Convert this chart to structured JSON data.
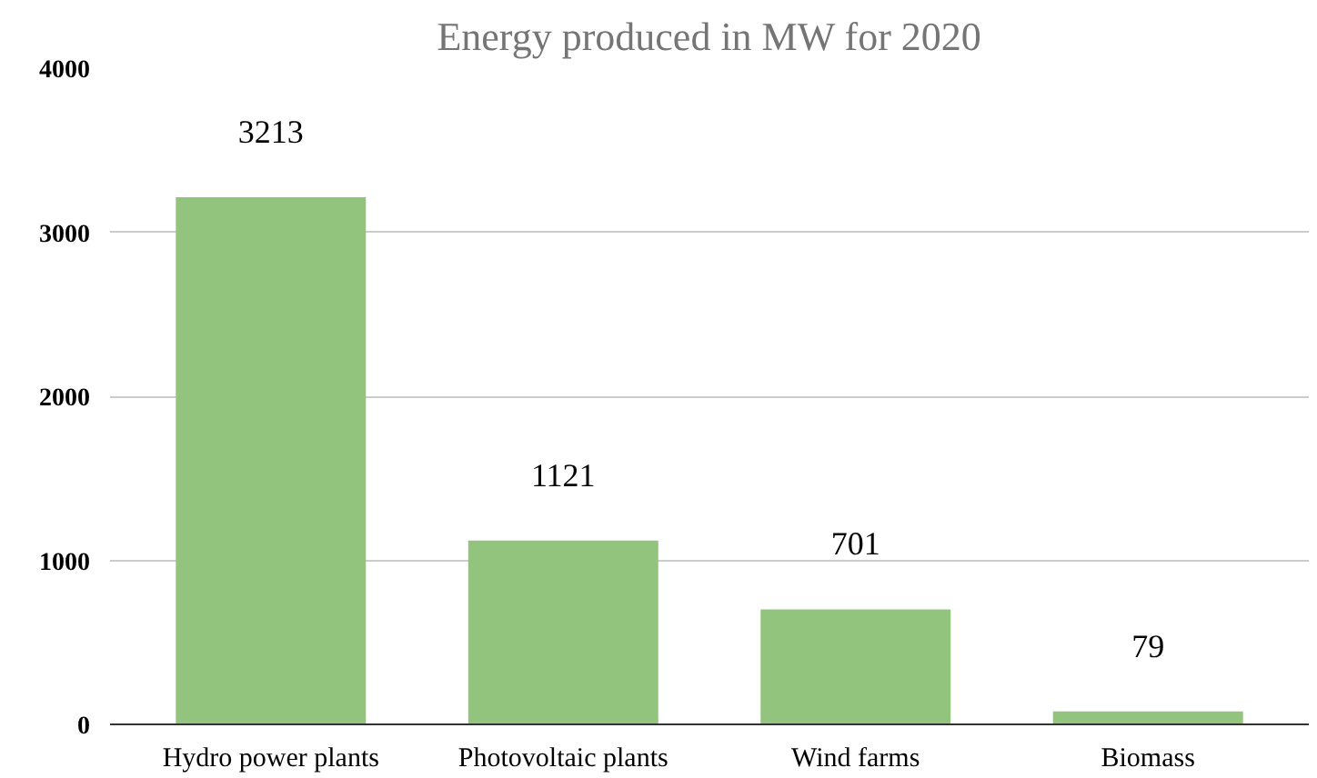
{
  "chart_data": {
    "type": "bar",
    "title": "Energy produced in MW for 2020",
    "categories": [
      "Hydro power plants",
      "Photovoltaic plants",
      "Wind farms",
      "Biomass"
    ],
    "values": [
      3213,
      1121,
      701,
      79
    ],
    "color": "#93c47d",
    "ylim": [
      0,
      4000
    ],
    "yticks": [
      0,
      1000,
      2000,
      3000,
      4000
    ],
    "grid": "y",
    "data_labels": true
  }
}
